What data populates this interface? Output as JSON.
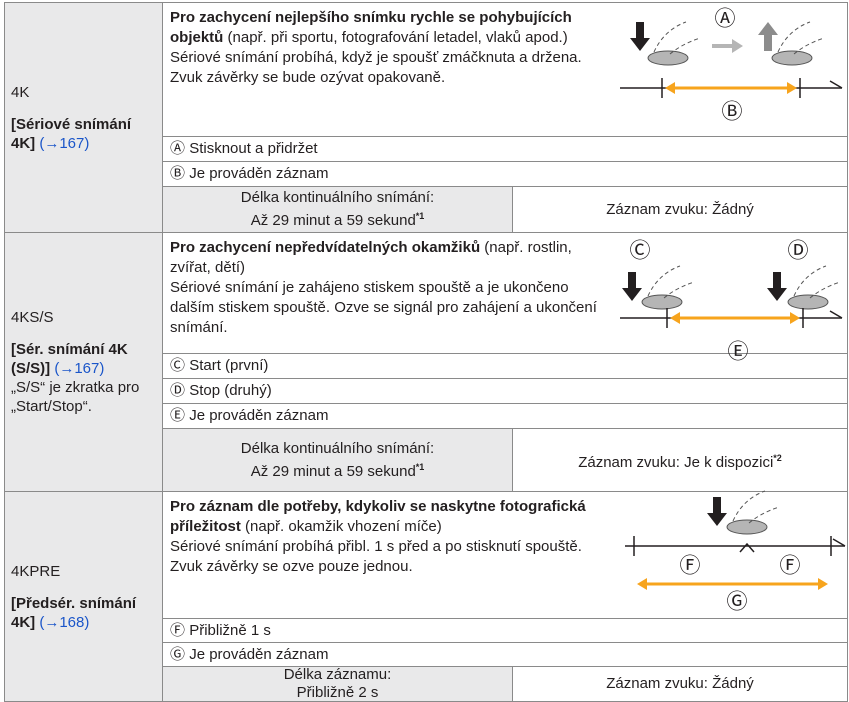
{
  "rows": [
    {
      "icon_text": "4K",
      "mode_name": "[Sériové snímání 4K]",
      "page_ref": "(→167)",
      "heading_bold": "Pro zachycení nejlepšího snímku rychle se pohybujících objektů",
      "heading_rest": " (např. při sportu, fotografování letadel, vlaků apod.)",
      "description": "Sériové snímání probíhá, když je spoušť zmáčknuta a držena. Zvuk závěrky se bude ozývat opakovaně.",
      "items": [
        {
          "marker": "Ⓐ",
          "text": "Stisknout a přidržet"
        },
        {
          "marker": "Ⓑ",
          "text": "Je prováděn záznam"
        }
      ],
      "illustration_labels": [
        "Ⓐ",
        "Ⓑ"
      ],
      "bottom_left_label": "Délka kontinuálního snímání:",
      "bottom_left_value": "Až 29 minut a 59 sekund",
      "bottom_left_footnote": "*1",
      "bottom_right": "Záznam zvuku: Žádný"
    },
    {
      "icon_text": "4K",
      "icon_sub": "S/S",
      "mode_name": "[Sér. snímání 4K (S/S)]",
      "page_ref": "(→167)",
      "note": "„S/S“ je zkratka pro „Start/Stop“.",
      "heading_bold": "Pro zachycení nepředvídatelných okamžiků",
      "heading_rest": " (např. rostlin, zvířat, dětí)",
      "description": "Sériové snímání je zahájeno stiskem spouště a je ukončeno dalším stiskem spouště. Ozve se signál pro zahájení a ukončení snímání.",
      "items": [
        {
          "marker": "Ⓒ",
          "text": "Start (první)"
        },
        {
          "marker": "Ⓓ",
          "text": "Stop (druhý)"
        },
        {
          "marker": "Ⓔ",
          "text": "Je prováděn záznam"
        }
      ],
      "illustration_labels": [
        "Ⓒ",
        "Ⓓ",
        "Ⓔ"
      ],
      "bottom_left_label": "Délka kontinuálního snímání:",
      "bottom_left_value": "Až 29 minut a 59 sekund",
      "bottom_left_footnote": "*1",
      "bottom_right": "Záznam zvuku: Je k dispozici",
      "bottom_right_footnote": "*2"
    },
    {
      "icon_text": "4K",
      "icon_sub": "PRE",
      "mode_name": "[Předsér. snímání 4K]",
      "page_ref": "(→168)",
      "heading_bold": "Pro záznam dle potřeby, kdykoliv se naskytne fotografická příležitost",
      "heading_rest": " (např. okamžik vhození míče)",
      "description": "Sériové snímání probíhá přibl. 1 s před a po stisknutí spouště. Zvuk závěrky se ozve pouze jednou.",
      "items": [
        {
          "marker": "Ⓕ",
          "text": "Přibližně 1 s"
        },
        {
          "marker": "Ⓖ",
          "text": "Je prováděn záznam"
        }
      ],
      "illustration_labels": [
        "Ⓕ",
        "Ⓕ",
        "Ⓖ"
      ],
      "bottom_left_label": "Délka záznamu:",
      "bottom_left_value": "Přibližně 2 s",
      "bottom_right": "Záznam zvuku: Žádný"
    }
  ]
}
